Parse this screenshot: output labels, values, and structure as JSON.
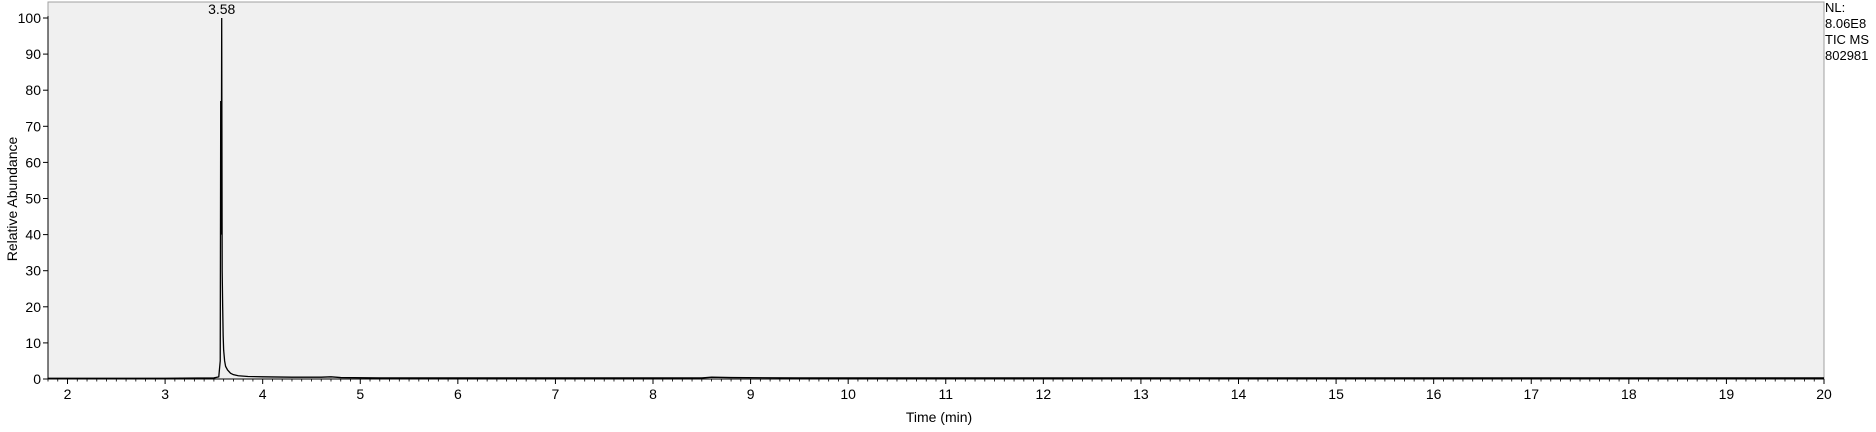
{
  "chart_data": {
    "type": "line",
    "title": "",
    "xlabel": "Time (min)",
    "ylabel": "Relative Abundance",
    "xlim": [
      1.8,
      20
    ],
    "ylim": [
      0,
      100
    ],
    "x_ticks": [
      2,
      3,
      4,
      5,
      6,
      7,
      8,
      9,
      10,
      11,
      12,
      13,
      14,
      15,
      16,
      17,
      18,
      19,
      20
    ],
    "y_ticks": [
      0,
      10,
      20,
      30,
      40,
      50,
      60,
      70,
      80,
      90,
      100
    ],
    "grid": false,
    "background": "#f0f0f0",
    "line_color": "#000000",
    "info": [
      "NL:",
      "8.06E8",
      "TIC  MS",
      "802981"
    ],
    "peak_labels": [
      {
        "x": 3.58,
        "y": 100,
        "label": "3.58"
      }
    ],
    "series": [
      {
        "x": [
          1.8,
          2.5,
          3.0,
          3.5,
          3.55,
          3.565,
          3.57,
          3.575,
          3.58,
          3.585,
          3.59,
          3.595,
          3.6,
          3.61,
          3.62,
          3.64,
          3.67,
          3.7,
          3.75,
          3.85,
          4.0,
          4.3,
          4.6,
          4.7,
          4.8,
          5.2,
          6.0,
          7.0,
          8.0,
          8.5,
          8.6,
          8.8,
          9.5,
          10,
          12,
          14,
          16,
          18,
          20
        ],
        "y": [
          0.2,
          0.2,
          0.2,
          0.3,
          0.6,
          5,
          77,
          40,
          100,
          30,
          20,
          12,
          8,
          5,
          3.5,
          2.5,
          1.6,
          1.2,
          0.9,
          0.7,
          0.6,
          0.5,
          0.5,
          0.6,
          0.4,
          0.3,
          0.3,
          0.3,
          0.3,
          0.3,
          0.5,
          0.4,
          0.3,
          0.3,
          0.3,
          0.3,
          0.3,
          0.3,
          0.3
        ]
      }
    ]
  }
}
